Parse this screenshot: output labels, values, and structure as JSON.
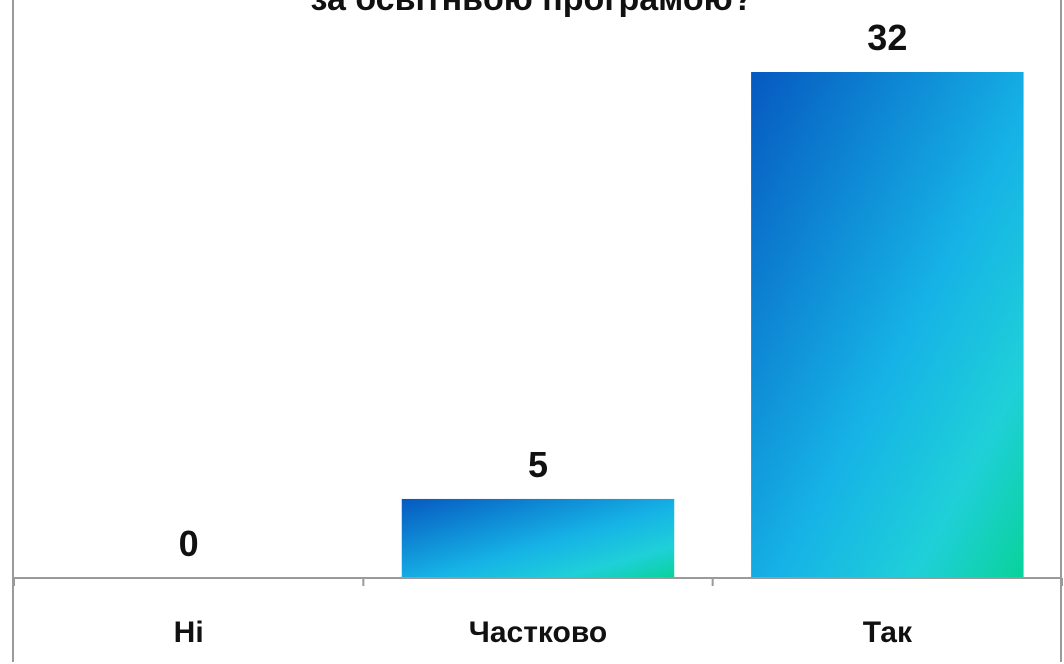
{
  "chart_data": {
    "type": "bar",
    "title": "за освітньою програмою?",
    "categories": [
      "Ні",
      "Частково",
      "Так"
    ],
    "values": [
      0,
      5,
      32
    ],
    "data_labels": [
      "0",
      "5",
      "32"
    ],
    "xlabel": "",
    "ylabel": "",
    "ylim": [
      0,
      32
    ],
    "grid": false,
    "legend": "none",
    "colors": {
      "bar_start": "#0659c0",
      "bar_mid": "#16b3e6",
      "bar_end": "#08d29a",
      "axis": "#9a9a9a",
      "text": "#111111"
    }
  }
}
